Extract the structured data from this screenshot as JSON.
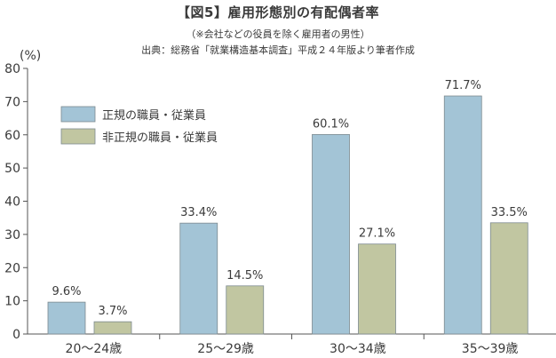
{
  "title": "【図5】雇用形態別の有配偶者率",
  "subtitle": "（※会社などの役員を除く雇用者の男性）",
  "source": "出典：総務省「就業構造基本調査」平成２４年版より筆者作成",
  "colors": {
    "series1": "#a3c4d6",
    "series2": "#c1c6a1",
    "bar_stroke": "#7d8a8f",
    "axis": "#555555"
  },
  "chart_data": {
    "type": "bar",
    "title": "【図5】雇用形態別の有配偶者率",
    "ylabel": "(%)",
    "xlabel": "",
    "ylim": [
      0,
      80
    ],
    "yticks": [
      0,
      10,
      20,
      30,
      40,
      50,
      60,
      70,
      80
    ],
    "categories": [
      "20～24歳",
      "25～29歳",
      "30～34歳",
      "35～39歳"
    ],
    "series": [
      {
        "name": "正規の職員・従業員",
        "values": [
          9.6,
          33.4,
          60.1,
          71.7
        ],
        "labels": [
          "9.6%",
          "33.4%",
          "60.1%",
          "71.7%"
        ]
      },
      {
        "name": "非正規の職員・従業員",
        "values": [
          3.7,
          14.5,
          27.1,
          33.5
        ],
        "labels": [
          "3.7%",
          "14.5%",
          "27.1%",
          "33.5%"
        ]
      }
    ],
    "legend_position": "top-left",
    "grid": false
  }
}
